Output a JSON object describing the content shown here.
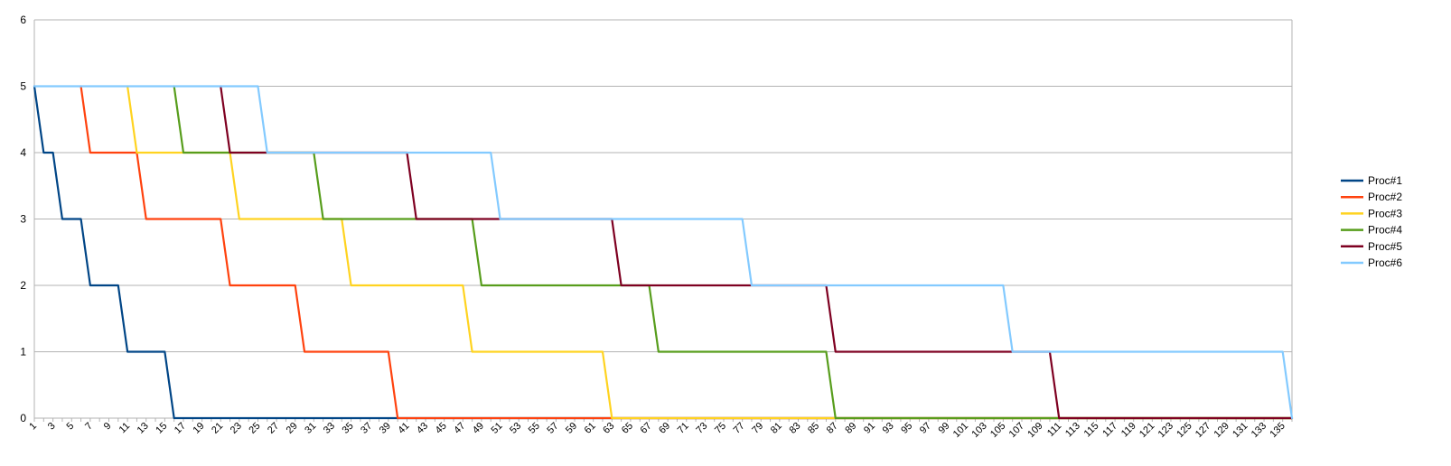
{
  "chart_data": {
    "type": "line",
    "title": "",
    "xlabel": "",
    "ylabel": "",
    "ylim": [
      0,
      6
    ],
    "yticks": [
      0,
      1,
      2,
      3,
      4,
      5,
      6
    ],
    "xlim": [
      1,
      136
    ],
    "xtick_labels_shown": "odd numbers 1 to 135",
    "grid": "horizontal",
    "legend_position": "right",
    "series": [
      {
        "name": "Proc#1",
        "color": "#004586",
        "points": [
          [
            1,
            5
          ],
          [
            2,
            4
          ],
          [
            3,
            4
          ],
          [
            4,
            3
          ],
          [
            6,
            3
          ],
          [
            7,
            2
          ],
          [
            10,
            2
          ],
          [
            11,
            1
          ],
          [
            15,
            1
          ],
          [
            16,
            0
          ],
          [
            136,
            0
          ]
        ]
      },
      {
        "name": "Proc#2",
        "color": "#ff420e",
        "points": [
          [
            6,
            5
          ],
          [
            7,
            4
          ],
          [
            12,
            4
          ],
          [
            13,
            3
          ],
          [
            21,
            3
          ],
          [
            22,
            2
          ],
          [
            29,
            2
          ],
          [
            30,
            1
          ],
          [
            39,
            1
          ],
          [
            40,
            0
          ],
          [
            136,
            0
          ]
        ]
      },
      {
        "name": "Proc#3",
        "color": "#ffd320",
        "points": [
          [
            11,
            5
          ],
          [
            12,
            4
          ],
          [
            22,
            4
          ],
          [
            23,
            3
          ],
          [
            34,
            3
          ],
          [
            35,
            2
          ],
          [
            47,
            2
          ],
          [
            48,
            1
          ],
          [
            62,
            1
          ],
          [
            63,
            0
          ],
          [
            136,
            0
          ]
        ]
      },
      {
        "name": "Proc#4",
        "color": "#579d1c",
        "points": [
          [
            16,
            5
          ],
          [
            17,
            4
          ],
          [
            31,
            4
          ],
          [
            32,
            3
          ],
          [
            48,
            3
          ],
          [
            49,
            2
          ],
          [
            67,
            2
          ],
          [
            68,
            1
          ],
          [
            86,
            1
          ],
          [
            87,
            0
          ],
          [
            136,
            0
          ]
        ]
      },
      {
        "name": "Proc#5",
        "color": "#7e0021",
        "points": [
          [
            21,
            5
          ],
          [
            22,
            4
          ],
          [
            41,
            4
          ],
          [
            42,
            3
          ],
          [
            63,
            3
          ],
          [
            64,
            2
          ],
          [
            86,
            2
          ],
          [
            87,
            1
          ],
          [
            110,
            1
          ],
          [
            111,
            0
          ],
          [
            136,
            0
          ]
        ]
      },
      {
        "name": "Proc#6",
        "color": "#83caff",
        "points": [
          [
            1,
            5
          ],
          [
            25,
            5
          ],
          [
            26,
            4
          ],
          [
            50,
            4
          ],
          [
            51,
            3
          ],
          [
            77,
            3
          ],
          [
            78,
            2
          ],
          [
            105,
            2
          ],
          [
            106,
            1
          ],
          [
            135,
            1
          ],
          [
            136,
            0
          ]
        ]
      }
    ]
  }
}
